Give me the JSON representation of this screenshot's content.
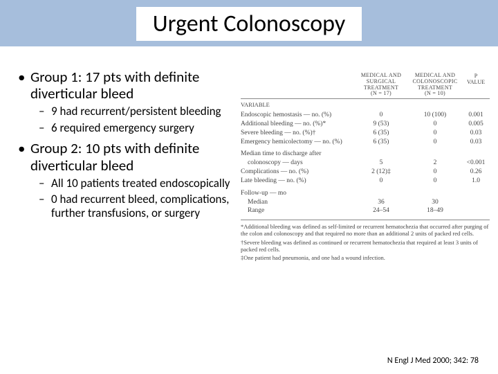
{
  "title": "Urgent Colonoscopy",
  "left_bullets": {
    "group1": {
      "heading": "Group 1: 17 pts with definite diverticular bleed",
      "sub": [
        "9 had recurrent/persistent bleeding",
        "6 required emergency surgery"
      ]
    },
    "group2": {
      "heading": "Group 2: 10 pts with definite diverticular bleed",
      "sub": [
        "All 10 patients treated endoscopically",
        "0 had recurrent bleed, complications, further transfusions, or surgery"
      ]
    }
  },
  "table": {
    "col_headers": {
      "col1": {
        "l1": "MEDICAL AND",
        "l2": "SURGICAL",
        "l3": "TREATMENT",
        "n": "(N = 17)"
      },
      "col2": {
        "l1": "MEDICAL AND",
        "l2": "COLONOSCOPIC",
        "l3": "TREATMENT",
        "n": "(N = 10)"
      },
      "pcol": {
        "l1": "P",
        "l2": "VALUE"
      }
    },
    "variable_label": "VARIABLE",
    "rows": [
      {
        "label": "Endoscopic hemostasis — no. (%)",
        "c1": "0",
        "c2": "10 (100)",
        "p": "0.001"
      },
      {
        "label": "Additional bleeding — no. (%)*",
        "c1": "9 (53)",
        "c2": "0",
        "p": "0.005"
      },
      {
        "label": "Severe bleeding — no. (%)†",
        "c1": "6 (35)",
        "c2": "0",
        "p": "0.03"
      },
      {
        "label": "Emergency hemicolectomy — no. (%)",
        "c1": "6 (35)",
        "c2": "0",
        "p": "0.03"
      }
    ],
    "median_label": "Median time to discharge after",
    "median_sub": "colonoscopy — days",
    "median": {
      "c1": "5",
      "c2": "2",
      "p": "<0.001"
    },
    "rows2": [
      {
        "label": "Complications — no. (%)",
        "c1": "2 (12)‡",
        "c2": "0",
        "p": "0.26"
      },
      {
        "label": "Late bleeding — no. (%)",
        "c1": "0",
        "c2": "0",
        "p": "1.0"
      }
    ],
    "followup_label": "Follow-up — mo",
    "followup": {
      "median_label": "Median",
      "median_c1": "36",
      "median_c2": "30",
      "range_label": "Range",
      "range_c1": "24–54",
      "range_c2": "18–49"
    },
    "footnotes": {
      "f1": "*Additional bleeding was defined as self-limited or recurrent hematochezia that occurred after purging of the colon and colonoscopy and that required no more than an additional 2 units of packed red cells.",
      "f2": "†Severe bleeding was defined as continued or recurrent hematochezia that required at least 3 units of packed red cells.",
      "f3": "‡One patient had pneumonia, and one had a wound infection."
    }
  },
  "citation": "N Engl J Med 2000; 342: 78",
  "colors": {
    "band": "#a6bedc"
  }
}
